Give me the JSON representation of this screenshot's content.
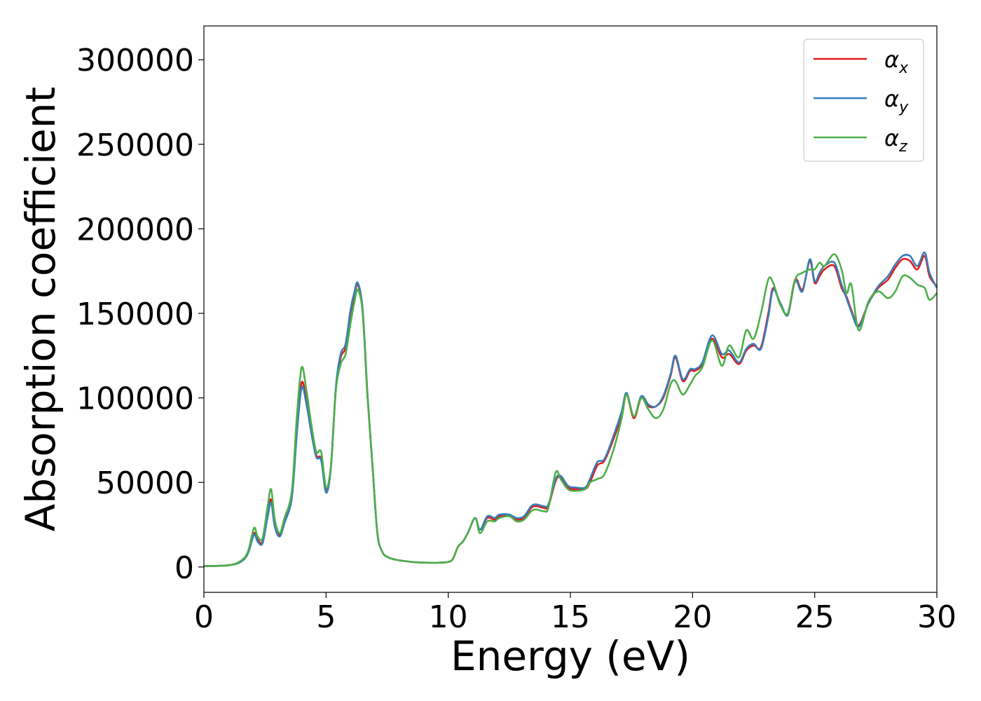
{
  "chart_data": {
    "type": "line",
    "xlabel": "Energy (eV)",
    "ylabel": "Absorption coefficient",
    "xlim": [
      0,
      30
    ],
    "ylim": [
      -15000,
      320000
    ],
    "xticks": [
      0,
      5,
      10,
      15,
      20,
      25,
      30
    ],
    "xtick_labels": [
      "0",
      "5",
      "10",
      "15",
      "20",
      "25",
      "30"
    ],
    "yticks": [
      0,
      50000,
      100000,
      150000,
      200000,
      250000,
      300000
    ],
    "ytick_labels": [
      "0",
      "50000",
      "100000",
      "150000",
      "200000",
      "250000",
      "300000"
    ],
    "grid": false,
    "legend_position": "top-right",
    "series": [
      {
        "name": "αx",
        "legend_base": "α",
        "legend_sub": "x",
        "color": "#e41a1c",
        "x": [
          0,
          1,
          1.5,
          1.8,
          2.05,
          2.2,
          2.4,
          2.6,
          2.75,
          2.9,
          3.1,
          3.3,
          3.6,
          3.8,
          4.0,
          4.2,
          4.4,
          4.6,
          4.8,
          5.0,
          5.2,
          5.4,
          5.6,
          5.8,
          6.0,
          6.15,
          6.3,
          6.5,
          6.7,
          6.9,
          7.1,
          7.3,
          7.5,
          7.8,
          8.2,
          8.8,
          9.5,
          10.0,
          10.2,
          10.4,
          10.6,
          10.8,
          11.1,
          11.3,
          11.6,
          11.9,
          12.1,
          12.5,
          12.8,
          13.1,
          13.4,
          13.6,
          13.9,
          14.1,
          14.4,
          14.6,
          14.9,
          15.2,
          15.6,
          15.8,
          16.1,
          16.4,
          16.8,
          17.1,
          17.3,
          17.6,
          17.9,
          18.2,
          18.5,
          18.8,
          19.1,
          19.3,
          19.6,
          19.9,
          20.1,
          20.4,
          20.8,
          21.2,
          21.5,
          21.9,
          22.2,
          22.5,
          22.8,
          23.1,
          23.3,
          23.6,
          23.9,
          24.2,
          24.5,
          24.8,
          25.0,
          25.2,
          25.4,
          25.8,
          26.1,
          26.3,
          26.5,
          26.8,
          27.2,
          27.6,
          28.0,
          28.3,
          28.6,
          28.9,
          29.2,
          29.5,
          29.7,
          30.0
        ],
        "y": [
          500,
          1000,
          3000,
          8000,
          20000,
          16000,
          15000,
          30000,
          40000,
          25000,
          19000,
          27000,
          42000,
          80000,
          109000,
          98000,
          80000,
          66000,
          64000,
          46000,
          60000,
          105000,
          124000,
          130000,
          150000,
          160000,
          167000,
          150000,
          100000,
          60000,
          20000,
          9000,
          6000,
          4500,
          3500,
          2700,
          2500,
          3000,
          5000,
          12000,
          15000,
          20000,
          29000,
          22000,
          29000,
          28000,
          30000,
          30000,
          28000,
          29000,
          35000,
          36000,
          35000,
          36000,
          51000,
          53000,
          47000,
          46000,
          46000,
          50000,
          60000,
          63000,
          77000,
          90000,
          102000,
          88000,
          100000,
          95000,
          95000,
          100000,
          113000,
          124000,
          110000,
          116000,
          116000,
          120000,
          135000,
          124000,
          126000,
          120000,
          128000,
          131000,
          130000,
          150000,
          165000,
          155000,
          150000,
          170000,
          164000,
          181000,
          168000,
          172000,
          176000,
          178000,
          165000,
          160000,
          152000,
          143000,
          156000,
          165000,
          170000,
          177000,
          182000,
          181000,
          176000,
          184000,
          172000,
          166000
        ]
      },
      {
        "name": "αy",
        "legend_base": "α",
        "legend_sub": "y",
        "color": "#377eb8",
        "x": [
          0,
          1,
          1.5,
          1.8,
          2.05,
          2.2,
          2.4,
          2.6,
          2.75,
          2.9,
          3.1,
          3.3,
          3.6,
          3.8,
          4.0,
          4.2,
          4.4,
          4.6,
          4.8,
          5.0,
          5.2,
          5.4,
          5.6,
          5.8,
          6.0,
          6.15,
          6.3,
          6.5,
          6.7,
          6.9,
          7.1,
          7.3,
          7.5,
          7.8,
          8.2,
          8.8,
          9.5,
          10.0,
          10.2,
          10.4,
          10.6,
          10.8,
          11.1,
          11.3,
          11.6,
          11.9,
          12.1,
          12.5,
          12.8,
          13.1,
          13.4,
          13.6,
          13.9,
          14.1,
          14.4,
          14.6,
          14.9,
          15.2,
          15.6,
          15.8,
          16.1,
          16.4,
          16.8,
          17.1,
          17.3,
          17.6,
          17.9,
          18.2,
          18.5,
          18.8,
          19.1,
          19.3,
          19.6,
          19.9,
          20.1,
          20.4,
          20.8,
          21.2,
          21.5,
          21.9,
          22.2,
          22.5,
          22.8,
          23.1,
          23.3,
          23.6,
          23.9,
          24.2,
          24.5,
          24.8,
          25.0,
          25.2,
          25.4,
          25.8,
          26.1,
          26.3,
          26.5,
          26.8,
          27.2,
          27.6,
          28.0,
          28.3,
          28.6,
          28.9,
          29.2,
          29.5,
          29.7,
          30.0
        ],
        "y": [
          500,
          1000,
          3000,
          8000,
          19000,
          15000,
          14000,
          29000,
          38000,
          24000,
          18000,
          26000,
          41000,
          78000,
          106000,
          96000,
          79000,
          65000,
          63000,
          44000,
          59000,
          106000,
          126000,
          132000,
          152000,
          162000,
          168000,
          152000,
          101000,
          60000,
          20000,
          9000,
          6000,
          4500,
          3500,
          2700,
          2500,
          3000,
          5000,
          12000,
          15000,
          20000,
          29000,
          22000,
          30000,
          29000,
          31000,
          31000,
          29000,
          30000,
          36000,
          37000,
          36000,
          37000,
          52000,
          54000,
          48000,
          47000,
          47000,
          52000,
          62000,
          64000,
          79000,
          92000,
          103000,
          89000,
          101000,
          96000,
          95000,
          101000,
          114000,
          125000,
          111000,
          117000,
          117000,
          121000,
          137000,
          126000,
          128000,
          121000,
          129000,
          132000,
          129000,
          148000,
          164000,
          156000,
          149000,
          169000,
          163000,
          182000,
          169000,
          174000,
          178000,
          180000,
          167000,
          159000,
          151000,
          142000,
          156000,
          166000,
          172000,
          179000,
          184000,
          184000,
          178000,
          186000,
          174000,
          165000
        ]
      },
      {
        "name": "αz",
        "legend_base": "α",
        "legend_sub": "z",
        "color": "#4daf4a",
        "x": [
          0,
          1,
          1.5,
          1.8,
          2.05,
          2.2,
          2.4,
          2.6,
          2.75,
          2.9,
          3.1,
          3.3,
          3.6,
          3.8,
          4.0,
          4.2,
          4.4,
          4.6,
          4.8,
          5.0,
          5.2,
          5.4,
          5.6,
          5.8,
          6.0,
          6.15,
          6.3,
          6.5,
          6.7,
          6.9,
          7.1,
          7.3,
          7.5,
          7.8,
          8.2,
          8.8,
          9.5,
          10.0,
          10.2,
          10.4,
          10.6,
          10.8,
          11.1,
          11.3,
          11.6,
          11.9,
          12.1,
          12.5,
          12.8,
          13.1,
          13.4,
          13.6,
          13.9,
          14.1,
          14.4,
          14.6,
          14.9,
          15.2,
          15.6,
          15.8,
          16.1,
          16.4,
          16.8,
          17.1,
          17.3,
          17.6,
          17.9,
          18.2,
          18.5,
          18.8,
          19.1,
          19.3,
          19.6,
          19.9,
          20.1,
          20.4,
          20.8,
          21.2,
          21.5,
          21.9,
          22.2,
          22.5,
          22.8,
          23.1,
          23.3,
          23.6,
          23.9,
          24.2,
          24.5,
          24.8,
          25.0,
          25.2,
          25.4,
          25.8,
          26.1,
          26.3,
          26.5,
          26.8,
          27.2,
          27.6,
          28.0,
          28.3,
          28.6,
          28.9,
          29.2,
          29.5,
          29.7,
          30.0
        ],
        "y": [
          500,
          1000,
          3500,
          9000,
          23000,
          18000,
          17000,
          35000,
          46000,
          28000,
          20000,
          29000,
          45000,
          88000,
          118000,
          104000,
          84000,
          68000,
          68000,
          47000,
          60000,
          104000,
          120000,
          126000,
          144000,
          156000,
          164000,
          150000,
          100000,
          60000,
          20000,
          9000,
          6000,
          4500,
          3500,
          2700,
          2500,
          3000,
          5000,
          12000,
          15000,
          20000,
          29000,
          20000,
          27000,
          27000,
          29000,
          30000,
          27000,
          28000,
          33000,
          34000,
          33000,
          35000,
          56000,
          52000,
          46000,
          45000,
          46000,
          50000,
          52000,
          55000,
          71000,
          88000,
          102000,
          89000,
          100000,
          93000,
          88000,
          93000,
          108000,
          110000,
          102000,
          108000,
          113000,
          118000,
          134000,
          119000,
          131000,
          124000,
          140000,
          135000,
          150000,
          170000,
          168000,
          155000,
          150000,
          170000,
          174000,
          176000,
          176000,
          180000,
          178000,
          185000,
          176000,
          162000,
          167000,
          140000,
          157000,
          163000,
          159000,
          163000,
          172000,
          171000,
          167000,
          165000,
          158000,
          162000
        ]
      }
    ]
  }
}
